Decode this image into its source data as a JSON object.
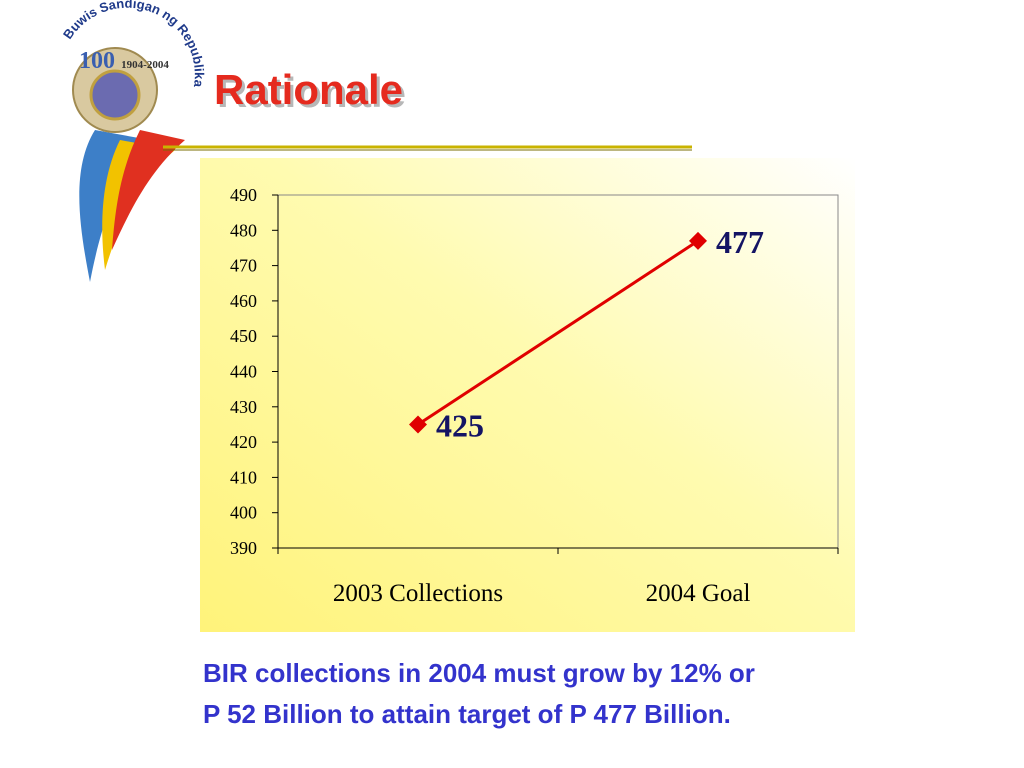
{
  "logo": {
    "motto": "Buwis Sandigan ng Republika",
    "number": "100",
    "years": "1904-2004"
  },
  "title": "Rationale",
  "chart_data": {
    "type": "line",
    "categories": [
      "2003 Collections",
      "2004 Goal"
    ],
    "values": [
      425,
      477
    ],
    "color": "#e00000",
    "ylim": [
      390,
      490
    ],
    "yticks": [
      390,
      400,
      410,
      420,
      430,
      440,
      450,
      460,
      470,
      480,
      490
    ]
  },
  "caption": [
    "BIR collections in 2004 must grow by 12% or",
    "P 52 Billion to attain target of P 477 Billion."
  ]
}
